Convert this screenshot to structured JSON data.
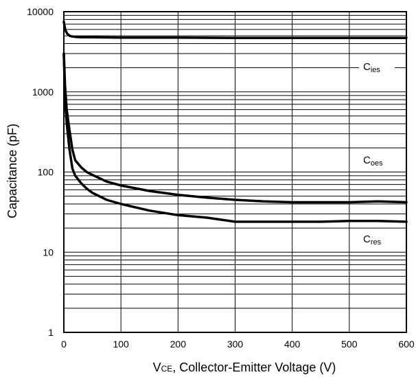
{
  "chart_data": {
    "type": "line",
    "title": "",
    "xlabel_main": "V",
    "xlabel_sub": "CE",
    "xlabel_rest": ", Collector-Emitter Voltage (V)",
    "ylabel": "Capacitance (pF)",
    "xlim": [
      0,
      600
    ],
    "ylim": [
      1,
      10000
    ],
    "yscale": "log",
    "grid": true,
    "x_ticks": [
      "0",
      "100",
      "200",
      "300",
      "400",
      "500",
      "600"
    ],
    "y_ticks": [
      "1",
      "10",
      "100",
      "1000",
      "10000"
    ],
    "series": [
      {
        "name_main": "C",
        "name_sub": "ies",
        "x": [
          0,
          1,
          3,
          6,
          10,
          15,
          20,
          30,
          50,
          100,
          200,
          300,
          400,
          500,
          600
        ],
        "y": [
          7500,
          6800,
          5800,
          5300,
          5000,
          4900,
          4850,
          4800,
          4800,
          4750,
          4750,
          4700,
          4700,
          4700,
          4700
        ]
      },
      {
        "name_main": "C",
        "name_sub": "oes",
        "x": [
          0,
          2,
          5,
          10,
          15,
          20,
          30,
          40,
          50,
          75,
          100,
          150,
          200,
          250,
          300,
          350,
          400,
          450,
          500,
          550,
          600
        ],
        "y": [
          3000,
          1200,
          600,
          330,
          190,
          140,
          115,
          100,
          92,
          76,
          68,
          58,
          52,
          48,
          45,
          43,
          42,
          42,
          42,
          43,
          42
        ]
      },
      {
        "name_main": "C",
        "name_sub": "res",
        "x": [
          0,
          2,
          5,
          10,
          15,
          20,
          30,
          40,
          50,
          75,
          100,
          150,
          200,
          250,
          300,
          350,
          400,
          450,
          500,
          550,
          600
        ],
        "y": [
          3000,
          800,
          400,
          190,
          110,
          90,
          73,
          62,
          55,
          45,
          40,
          33,
          29,
          27,
          24,
          24,
          24,
          24,
          24.5,
          24.5,
          24
        ]
      }
    ]
  }
}
